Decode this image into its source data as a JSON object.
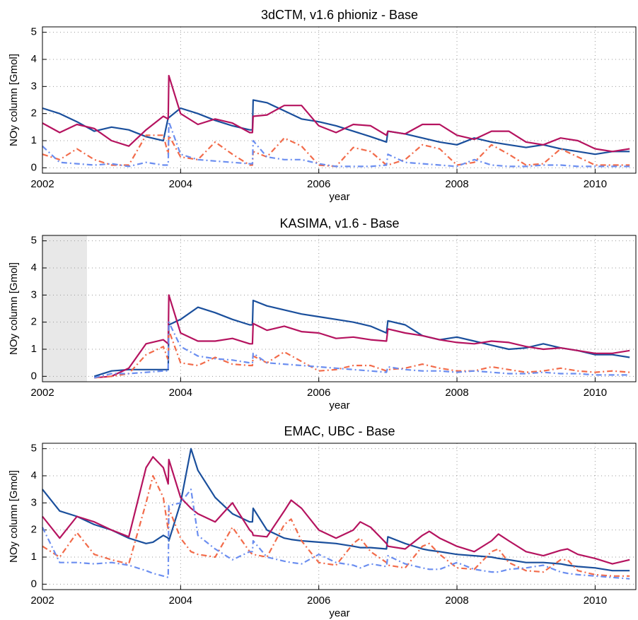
{
  "chart_data": [
    {
      "type": "line",
      "title": "3dCTM, v1.6 phioniz - Base",
      "x_label": "year",
      "y_label": "NOy column [Gmol]",
      "xlim": [
        2002,
        2010.6
      ],
      "xticks": [
        2002,
        2004,
        2006,
        2008,
        2010
      ],
      "ylim": [
        -0.2,
        5.2
      ],
      "yticks": [
        0,
        1,
        2,
        3,
        4,
        5
      ],
      "grid": true,
      "x": [
        2002,
        2002.25,
        2002.5,
        2002.75,
        2003,
        2003.25,
        2003.5,
        2003.75,
        2003.82,
        2003.83,
        2004,
        2004.25,
        2004.5,
        2004.75,
        2005,
        2005.04,
        2005.05,
        2005.25,
        2005.5,
        2005.75,
        2006,
        2006.25,
        2006.5,
        2006.75,
        2006.98,
        2007,
        2007.25,
        2007.5,
        2007.75,
        2008,
        2008.25,
        2008.5,
        2008.75,
        2009,
        2009.25,
        2009.5,
        2009.75,
        2010,
        2010.25,
        2010.5
      ],
      "series": [
        {
          "color": "#1a4f9c",
          "linestyle": "solid",
          "values": [
            2.2,
            2.0,
            1.7,
            1.35,
            1.5,
            1.4,
            1.15,
            1.0,
            1.85,
            1.85,
            2.2,
            2.0,
            1.75,
            1.55,
            1.4,
            1.4,
            2.5,
            2.4,
            2.1,
            1.8,
            1.7,
            1.55,
            1.35,
            1.15,
            0.95,
            1.35,
            1.25,
            1.1,
            0.95,
            0.85,
            1.1,
            0.95,
            0.85,
            0.75,
            0.85,
            0.7,
            0.6,
            0.5,
            0.6,
            0.6
          ]
        },
        {
          "color": "#b5135f",
          "linestyle": "solid",
          "values": [
            1.65,
            1.3,
            1.6,
            1.45,
            1.0,
            0.8,
            1.4,
            1.9,
            1.8,
            3.4,
            2.0,
            1.6,
            1.8,
            1.65,
            1.3,
            1.3,
            1.9,
            1.95,
            2.3,
            2.3,
            1.55,
            1.3,
            1.6,
            1.55,
            1.2,
            1.35,
            1.25,
            1.6,
            1.6,
            1.2,
            1.05,
            1.35,
            1.35,
            0.95,
            0.85,
            1.1,
            1.0,
            0.7,
            0.6,
            0.7
          ]
        },
        {
          "color": "#f26b4a",
          "linestyle": "dashdot",
          "values": [
            0.5,
            0.3,
            0.7,
            0.3,
            0.1,
            0.1,
            1.2,
            1.2,
            0.5,
            1.2,
            0.4,
            0.3,
            0.95,
            0.5,
            0.1,
            0.1,
            0.6,
            0.4,
            1.1,
            0.8,
            0.1,
            0.05,
            0.75,
            0.6,
            0.1,
            0.1,
            0.3,
            0.85,
            0.7,
            0.1,
            0.2,
            0.85,
            0.5,
            0.1,
            0.15,
            0.7,
            0.4,
            0.1,
            0.1,
            0.1
          ]
        },
        {
          "color": "#6b8ef0",
          "linestyle": "dashdot",
          "values": [
            0.8,
            0.2,
            0.15,
            0.1,
            0.15,
            0.05,
            0.2,
            0.1,
            0.1,
            1.7,
            0.5,
            0.3,
            0.25,
            0.2,
            0.15,
            0.15,
            1.0,
            0.4,
            0.3,
            0.3,
            0.15,
            0.05,
            0.05,
            0.05,
            0.1,
            0.5,
            0.2,
            0.15,
            0.1,
            0.05,
            0.3,
            0.1,
            0.05,
            0.05,
            0.1,
            0.1,
            0.05,
            0.05,
            0.05,
            0.05
          ]
        }
      ]
    },
    {
      "type": "line",
      "title": "KASIMA, v1.6 - Base",
      "x_label": "year",
      "y_label": "NOy column [Gmol]",
      "xlim": [
        2002,
        2010.6
      ],
      "xticks": [
        2002,
        2004,
        2006,
        2008,
        2010
      ],
      "ylim": [
        -0.2,
        5.2
      ],
      "yticks": [
        0,
        1,
        2,
        3,
        4,
        5
      ],
      "grid": true,
      "x": [
        2002,
        2002.25,
        2002.5,
        2002.75,
        2003,
        2003.25,
        2003.5,
        2003.75,
        2003.82,
        2003.83,
        2004,
        2004.25,
        2004.5,
        2004.75,
        2005,
        2005.04,
        2005.05,
        2005.25,
        2005.5,
        2005.75,
        2006,
        2006.25,
        2006.5,
        2006.75,
        2006.98,
        2007,
        2007.25,
        2007.5,
        2007.75,
        2008,
        2008.25,
        2008.5,
        2008.75,
        2009,
        2009.25,
        2009.5,
        2009.75,
        2010,
        2010.25,
        2010.5
      ],
      "series": [
        {
          "color": "#1a4f9c",
          "linestyle": "solid",
          "values": [
            null,
            null,
            null,
            0.0,
            0.2,
            0.25,
            0.25,
            0.25,
            0.25,
            1.9,
            2.1,
            2.55,
            2.35,
            2.1,
            1.9,
            1.9,
            2.8,
            2.6,
            2.45,
            2.3,
            2.2,
            2.1,
            2.0,
            1.85,
            1.6,
            2.05,
            1.9,
            1.5,
            1.35,
            1.45,
            1.3,
            1.15,
            1.0,
            1.05,
            1.2,
            1.05,
            0.95,
            0.8,
            0.8,
            0.7
          ]
        },
        {
          "color": "#b5135f",
          "linestyle": "solid",
          "values": [
            null,
            null,
            null,
            -0.05,
            0.0,
            0.3,
            1.2,
            1.35,
            1.2,
            3.0,
            1.6,
            1.3,
            1.3,
            1.4,
            1.2,
            1.2,
            1.95,
            1.7,
            1.85,
            1.65,
            1.6,
            1.4,
            1.45,
            1.35,
            1.3,
            1.75,
            1.6,
            1.5,
            1.35,
            1.25,
            1.2,
            1.3,
            1.25,
            1.1,
            1.0,
            1.05,
            0.95,
            0.85,
            0.85,
            0.95
          ]
        },
        {
          "color": "#f26b4a",
          "linestyle": "dashdot",
          "values": [
            null,
            null,
            null,
            -0.05,
            0.0,
            0.1,
            0.8,
            1.1,
            0.6,
            1.7,
            0.5,
            0.4,
            0.7,
            0.45,
            0.4,
            0.4,
            0.75,
            0.5,
            0.9,
            0.55,
            0.2,
            0.25,
            0.4,
            0.4,
            0.2,
            0.25,
            0.3,
            0.45,
            0.3,
            0.2,
            0.2,
            0.35,
            0.25,
            0.15,
            0.2,
            0.3,
            0.2,
            0.15,
            0.2,
            0.15
          ]
        },
        {
          "color": "#6b8ef0",
          "linestyle": "dashdot",
          "values": [
            null,
            null,
            null,
            -0.05,
            0.1,
            0.1,
            0.15,
            0.2,
            0.2,
            2.0,
            1.1,
            0.75,
            0.65,
            0.6,
            0.5,
            0.5,
            0.85,
            0.5,
            0.45,
            0.4,
            0.35,
            0.3,
            0.25,
            0.2,
            0.15,
            0.35,
            0.25,
            0.2,
            0.2,
            0.15,
            0.2,
            0.15,
            0.1,
            0.1,
            0.15,
            0.1,
            0.1,
            0.05,
            0.05,
            0.05
          ]
        }
      ]
    },
    {
      "type": "line",
      "title": "EMAC, UBC - Base",
      "x_label": "year",
      "y_label": "NOy column [Gmol]",
      "xlim": [
        2002,
        2010.6
      ],
      "xticks": [
        2002,
        2004,
        2006,
        2008,
        2010
      ],
      "ylim": [
        -0.2,
        5.2
      ],
      "yticks": [
        0,
        1,
        2,
        3,
        4,
        5
      ],
      "grid": true,
      "x": [
        2002,
        2002.25,
        2002.5,
        2002.75,
        2003,
        2003.25,
        2003.5,
        2003.6,
        2003.75,
        2003.82,
        2003.83,
        2004,
        2004.15,
        2004.25,
        2004.5,
        2004.75,
        2005,
        2005.04,
        2005.05,
        2005.25,
        2005.5,
        2005.6,
        2005.75,
        2006,
        2006.25,
        2006.5,
        2006.6,
        2006.75,
        2006.98,
        2007,
        2007.25,
        2007.5,
        2007.6,
        2007.75,
        2008,
        2008.25,
        2008.5,
        2008.6,
        2008.75,
        2009,
        2009.25,
        2009.5,
        2009.6,
        2009.75,
        2010,
        2010.25,
        2010.5
      ],
      "series": [
        {
          "color": "#1a4f9c",
          "linestyle": "solid",
          "values": [
            3.5,
            2.7,
            2.5,
            2.2,
            2.0,
            1.7,
            1.5,
            1.55,
            1.8,
            1.7,
            1.6,
            3.0,
            5.0,
            4.2,
            3.2,
            2.6,
            2.3,
            2.3,
            2.8,
            2.0,
            1.7,
            1.65,
            1.6,
            1.55,
            1.5,
            1.4,
            1.35,
            1.35,
            1.3,
            1.75,
            1.5,
            1.3,
            1.25,
            1.2,
            1.1,
            1.05,
            1.0,
            0.95,
            0.9,
            0.8,
            0.8,
            0.75,
            0.7,
            0.65,
            0.6,
            0.5,
            0.5
          ]
        },
        {
          "color": "#b5135f",
          "linestyle": "solid",
          "values": [
            2.5,
            1.7,
            2.5,
            2.3,
            2.0,
            1.75,
            4.3,
            4.7,
            4.3,
            3.7,
            4.6,
            3.2,
            2.8,
            2.6,
            2.3,
            3.0,
            2.0,
            1.9,
            1.8,
            1.75,
            2.7,
            3.1,
            2.8,
            2.0,
            1.7,
            2.0,
            2.3,
            2.1,
            1.5,
            1.4,
            1.3,
            1.8,
            1.95,
            1.7,
            1.4,
            1.2,
            1.6,
            1.85,
            1.6,
            1.2,
            1.05,
            1.25,
            1.3,
            1.1,
            0.95,
            0.75,
            0.9
          ]
        },
        {
          "color": "#f26b4a",
          "linestyle": "dashdot",
          "values": [
            1.4,
            1.0,
            1.9,
            1.1,
            0.9,
            0.75,
            3.0,
            4.0,
            3.2,
            2.0,
            2.8,
            1.7,
            1.2,
            1.1,
            1.0,
            2.1,
            1.2,
            1.1,
            1.1,
            1.0,
            2.2,
            2.4,
            1.6,
            0.8,
            0.7,
            1.5,
            1.7,
            1.2,
            0.8,
            0.7,
            0.6,
            1.4,
            1.5,
            1.1,
            0.6,
            0.55,
            1.2,
            1.3,
            0.8,
            0.5,
            0.45,
            0.9,
            0.9,
            0.5,
            0.35,
            0.3,
            0.3
          ]
        },
        {
          "color": "#6b8ef0",
          "linestyle": "dashdot",
          "values": [
            2.1,
            0.8,
            0.8,
            0.75,
            0.8,
            0.7,
            0.5,
            0.4,
            0.3,
            0.25,
            2.9,
            3.0,
            3.5,
            1.8,
            1.3,
            0.9,
            1.2,
            1.2,
            1.6,
            1.0,
            0.85,
            0.8,
            0.75,
            1.1,
            0.8,
            0.7,
            0.6,
            0.75,
            0.65,
            1.05,
            0.75,
            0.6,
            0.55,
            0.55,
            0.8,
            0.55,
            0.45,
            0.45,
            0.55,
            0.6,
            0.7,
            0.45,
            0.4,
            0.35,
            0.3,
            0.25,
            0.2
          ]
        }
      ]
    }
  ]
}
